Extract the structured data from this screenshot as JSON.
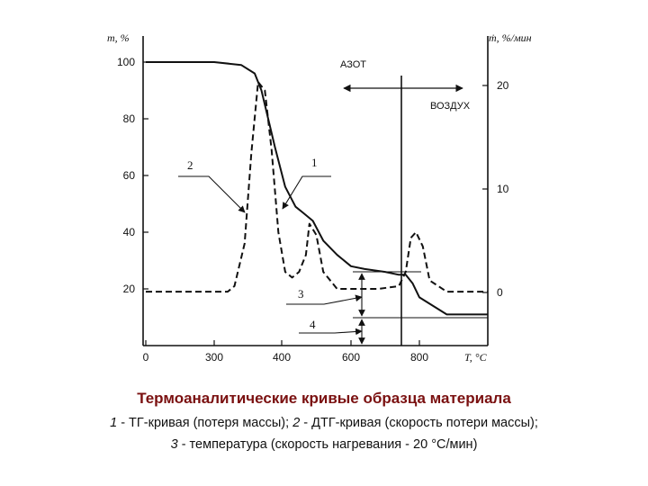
{
  "chart_data": {
    "type": "line",
    "x_axis": {
      "label": "T, °C",
      "ticks": [
        0,
        300,
        400,
        600,
        800
      ],
      "xlim": [
        0,
        1000
      ]
    },
    "y_left": {
      "label": "m, %",
      "ticks": [
        100,
        80,
        60,
        40,
        20
      ],
      "ylim": [
        0,
        110
      ]
    },
    "y_right": {
      "label": "ṁ, %/мин",
      "ticks": [
        20,
        10,
        0
      ]
    },
    "annotations": {
      "nitrogen": "АЗОТ",
      "air": "ВОЗДУХ"
    },
    "curve_labels": [
      "1",
      "2",
      "3",
      "4"
    ],
    "series": [
      {
        "name": "1",
        "style": "solid",
        "x": [
          0,
          300,
          340,
          360,
          370,
          380,
          390,
          410,
          440,
          460,
          490,
          520,
          560,
          600,
          640,
          700,
          740,
          760,
          780,
          800,
          840,
          880,
          1000
        ],
        "y": [
          100,
          100,
          99,
          96,
          90,
          80,
          70,
          56,
          49,
          47,
          44,
          37,
          32,
          28,
          27,
          26,
          25,
          25,
          22,
          17,
          14,
          11,
          11
        ]
      },
      {
        "name": "2",
        "style": "dashed",
        "x": [
          0,
          300,
          320,
          330,
          345,
          355,
          365,
          375,
          385,
          395,
          410,
          430,
          450,
          470,
          480,
          500,
          520,
          560,
          600,
          680,
          740,
          760,
          775,
          790,
          810,
          830,
          880,
          1000
        ],
        "y": [
          19,
          19,
          19,
          21,
          36,
          68,
          93,
          90,
          69,
          40,
          26,
          24,
          26,
          32,
          43,
          39,
          26,
          20,
          20,
          20,
          21,
          26,
          38,
          40,
          35,
          23,
          19,
          19
        ]
      }
    ]
  },
  "caption": {
    "title": "Термоаналитические кривые образца материала",
    "line1": [
      {
        "text": "1",
        "italic": true
      },
      {
        "text": " - ТГ-кривая (потеря массы); ",
        "italic": false
      },
      {
        "text": "2",
        "italic": true
      },
      {
        "text": " - ДТГ-кривая (скорость потери массы);",
        "italic": false
      }
    ],
    "line2": [
      {
        "text": "3",
        "italic": true
      },
      {
        "text": " - температура (скорость нагревания - 20 °С/мин)",
        "italic": false
      }
    ]
  }
}
